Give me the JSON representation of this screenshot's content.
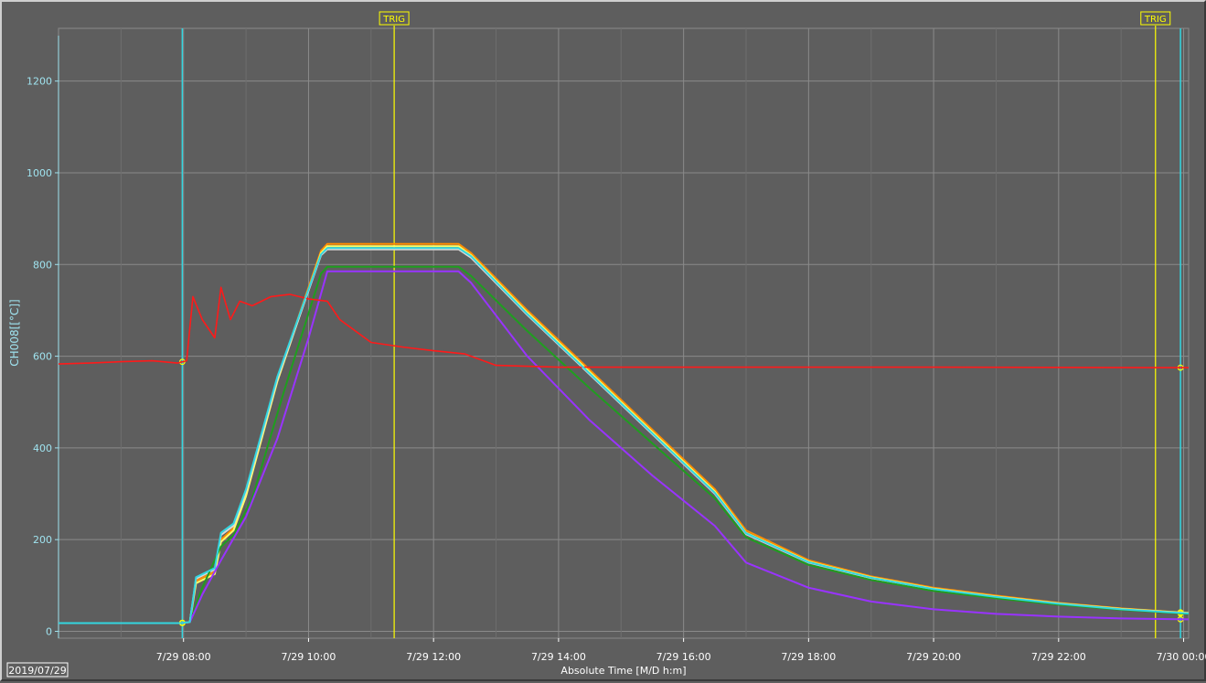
{
  "chart_data": {
    "type": "line",
    "ylabel": "CH008[[°C]]",
    "xlabel": "Absolute Time [M/D h:m]",
    "date_stamp": "2019/07/29",
    "y_ticks": [
      0,
      200,
      400,
      600,
      800,
      1000,
      1200
    ],
    "ylim": [
      -15,
      1315
    ],
    "xlim_hours": [
      6.0,
      24.08
    ],
    "x_ticks": [
      {
        "hour": 8,
        "label": "7/29 08:00"
      },
      {
        "hour": 10,
        "label": "7/29 10:00"
      },
      {
        "hour": 12,
        "label": "7/29 12:00"
      },
      {
        "hour": 14,
        "label": "7/29 14:00"
      },
      {
        "hour": 16,
        "label": "7/29 16:00"
      },
      {
        "hour": 18,
        "label": "7/29 18:00"
      },
      {
        "hour": 20,
        "label": "7/29 20:00"
      },
      {
        "hour": 22,
        "label": "7/29 22:00"
      },
      {
        "hour": 24,
        "label": "7/30 00:00"
      }
    ],
    "grid": true,
    "triggers": [
      {
        "hour": 11.37,
        "label": "TRIG"
      },
      {
        "hour": 23.55,
        "label": "TRIG"
      }
    ],
    "cursors": [
      {
        "hour": 7.98
      },
      {
        "hour": 23.95
      }
    ],
    "colors": {
      "background": "#5e5e5e",
      "grid": "#8a8a8a",
      "trigger": "#ffff00",
      "cursor": "#33d6e0"
    },
    "series": [
      {
        "color": "#ff8c00",
        "x": [
          6.0,
          7.95,
          8.1,
          8.2,
          8.5,
          8.6,
          8.8,
          9.0,
          9.5,
          10.2,
          10.3,
          12.4,
          12.6,
          13.5,
          14.5,
          15.5,
          16.5,
          17.0,
          18.0,
          19.0,
          20.0,
          21.0,
          22.0,
          23.0,
          24.08
        ],
        "y": [
          18,
          18,
          20,
          110,
          130,
          200,
          225,
          300,
          550,
          830,
          845,
          845,
          825,
          700,
          570,
          440,
          310,
          220,
          155,
          120,
          95,
          78,
          62,
          50,
          40
        ]
      },
      {
        "color": "#ffff66",
        "x": [
          6.0,
          7.95,
          8.1,
          8.2,
          8.5,
          8.6,
          8.8,
          9.0,
          9.5,
          10.2,
          10.3,
          12.4,
          12.6,
          13.5,
          14.5,
          15.5,
          16.5,
          17.0,
          18.0,
          19.0,
          20.0,
          21.0,
          22.0,
          23.0,
          24.08
        ],
        "y": [
          18,
          18,
          20,
          105,
          125,
          195,
          220,
          295,
          545,
          825,
          840,
          840,
          820,
          695,
          565,
          435,
          305,
          215,
          152,
          118,
          93,
          76,
          61,
          49,
          40
        ]
      },
      {
        "color": "#d8d8d8",
        "x": [
          6.0,
          7.95,
          8.1,
          8.2,
          8.5,
          8.6,
          8.8,
          9.0,
          9.5,
          10.2,
          10.3,
          12.4,
          12.6,
          13.5,
          14.5,
          15.5,
          16.5,
          17.0,
          18.0,
          19.0,
          20.0,
          21.0,
          22.0,
          23.0,
          24.08
        ],
        "y": [
          18,
          18,
          20,
          115,
          135,
          210,
          230,
          305,
          550,
          820,
          833,
          833,
          815,
          690,
          560,
          430,
          300,
          212,
          150,
          116,
          92,
          75,
          60,
          48,
          39
        ]
      },
      {
        "color": "#1f9e1f",
        "x": [
          6.0,
          7.95,
          8.1,
          8.3,
          8.6,
          8.8,
          9.1,
          9.6,
          10.2,
          10.3,
          12.4,
          12.6,
          13.5,
          14.5,
          15.5,
          16.5,
          17.0,
          18.0,
          19.0,
          20.0,
          21.0,
          22.0,
          23.0,
          24.08
        ],
        "y": [
          18,
          18,
          20,
          95,
          185,
          210,
          290,
          520,
          780,
          795,
          795,
          775,
          655,
          530,
          410,
          290,
          205,
          145,
          112,
          88,
          72,
          58,
          47,
          38
        ]
      },
      {
        "color": "#9933ff",
        "x": [
          6.0,
          7.95,
          8.1,
          8.3,
          8.6,
          9.0,
          9.5,
          10.0,
          10.3,
          12.4,
          12.6,
          13.5,
          14.5,
          15.5,
          16.5,
          17.0,
          18.0,
          19.0,
          20.0,
          21.0,
          22.0,
          23.0,
          24.08
        ],
        "y": [
          18,
          18,
          20,
          80,
          155,
          250,
          420,
          640,
          785,
          785,
          760,
          600,
          460,
          340,
          230,
          150,
          95,
          65,
          48,
          38,
          32,
          28,
          26
        ]
      },
      {
        "color": "#ff1a1a",
        "x": [
          6.0,
          6.5,
          7.0,
          7.5,
          7.9,
          8.05,
          8.15,
          8.3,
          8.5,
          8.6,
          8.75,
          8.9,
          9.1,
          9.4,
          9.7,
          10.0,
          10.3,
          10.5,
          11.0,
          11.5,
          12.0,
          12.5,
          13.0,
          14.0,
          16.0,
          20.0,
          24.08
        ],
        "y": [
          583,
          585,
          588,
          590,
          585,
          590,
          730,
          680,
          640,
          750,
          680,
          720,
          710,
          730,
          735,
          725,
          720,
          680,
          630,
          620,
          612,
          605,
          580,
          576,
          576,
          576,
          575
        ]
      },
      {
        "color": "#33d6e0",
        "x": [
          6.0,
          7.95,
          8.1,
          8.2,
          8.5,
          8.6,
          8.8,
          9.0,
          9.5,
          10.2,
          10.3,
          12.4,
          12.6,
          13.5,
          14.5,
          15.5,
          16.5,
          17.0,
          18.0,
          19.0,
          20.0,
          21.0,
          22.0,
          23.0,
          24.08
        ],
        "y": [
          18,
          18,
          20,
          118,
          138,
          215,
          235,
          310,
          555,
          822,
          836,
          836,
          818,
          692,
          562,
          432,
          302,
          214,
          151,
          117,
          92,
          75,
          60,
          48,
          39
        ]
      }
    ]
  }
}
